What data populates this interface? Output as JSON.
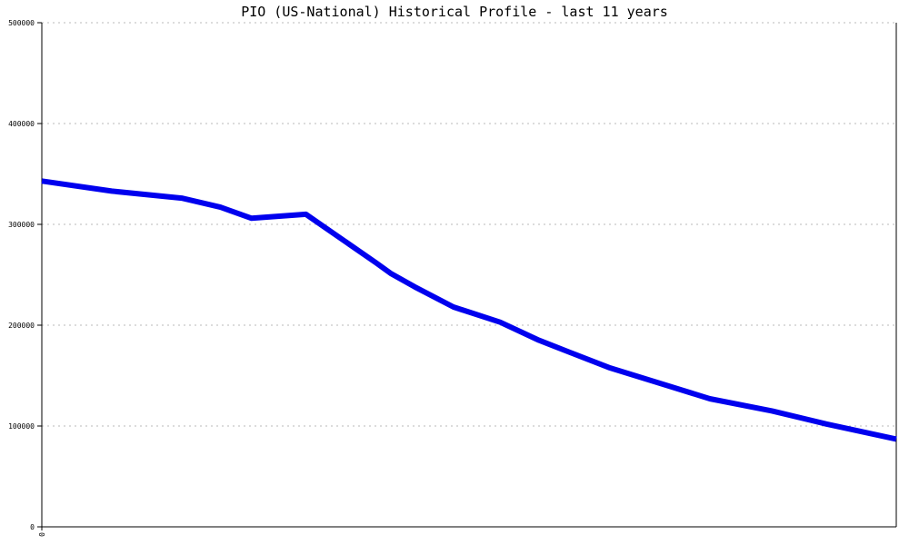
{
  "chart_data": {
    "type": "line",
    "title": "PIO (US-National) Historical Profile - last 11 years",
    "xlabel": "",
    "ylabel": "",
    "x_tick_labels": [
      "0"
    ],
    "y_ticks": [
      0,
      100000,
      200000,
      300000,
      400000,
      500000
    ],
    "y_tick_labels": [
      "0",
      "100000",
      "200000",
      "300000",
      "400000",
      "500000"
    ],
    "ylim": [
      0,
      500000
    ],
    "xlim": [
      0,
      11
    ],
    "grid": true,
    "series": [
      {
        "color": "#0000ee",
        "x": [
          0,
          0.9,
          1.8,
          2.3,
          2.7,
          3.4,
          4.3,
          4.5,
          4.8,
          5.3,
          5.9,
          6.4,
          6.8,
          7.3,
          8.1,
          8.6,
          9.4,
          10.1,
          11
        ],
        "y": [
          343000,
          333000,
          326000,
          317000,
          306000,
          310000,
          262000,
          251000,
          238000,
          218000,
          203000,
          185000,
          173000,
          158000,
          139000,
          127000,
          115000,
          102000,
          87000
        ]
      }
    ]
  }
}
